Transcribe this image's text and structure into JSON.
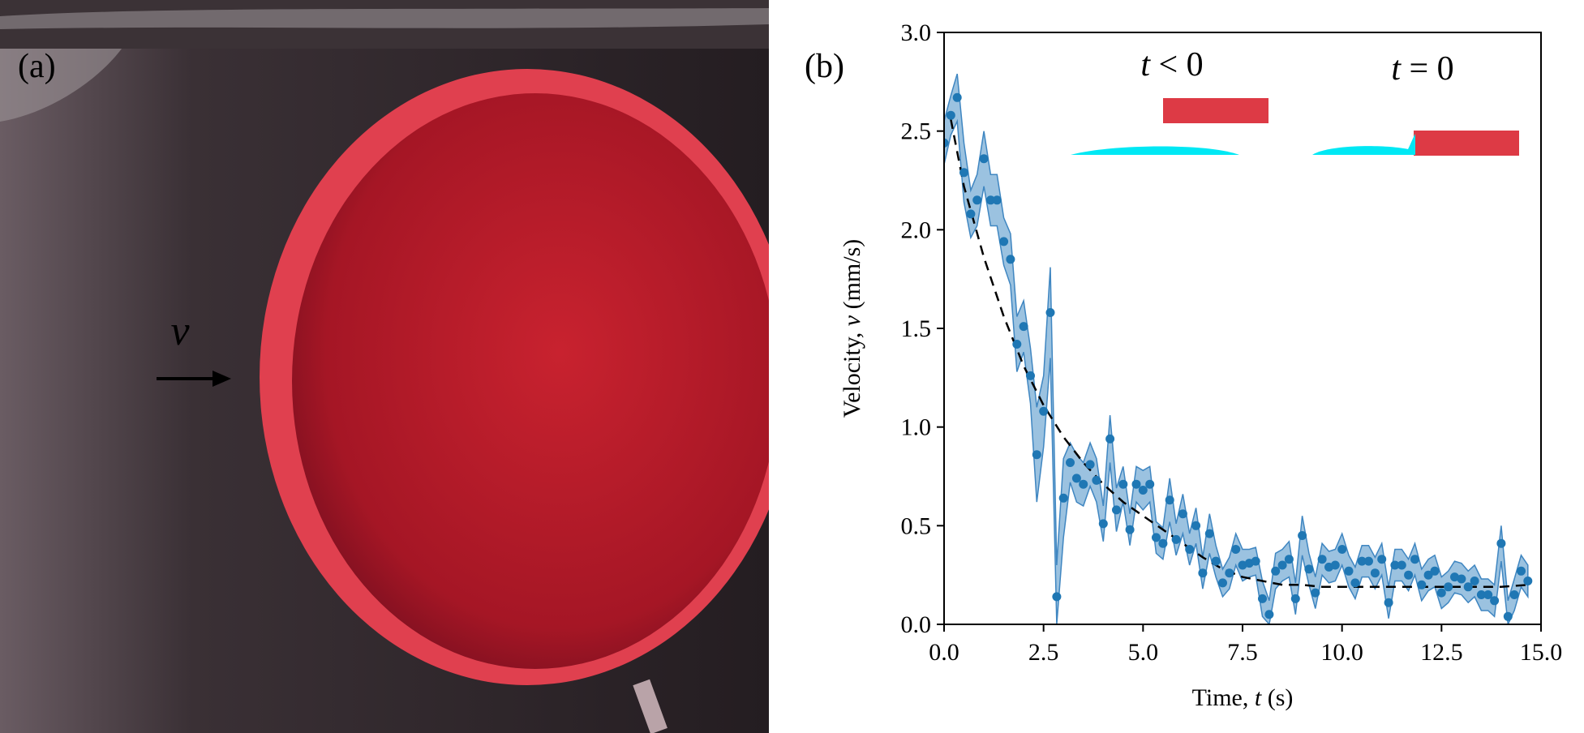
{
  "panel_a": {
    "label": "(a)",
    "velocity_symbol": "v",
    "colors": {
      "background": "#2a2226",
      "droplet": "#c01f2e",
      "droplet_rim": "#e0404f",
      "arrow": "#000000"
    }
  },
  "chart_data": {
    "type": "scatter",
    "panel_label": "(b)",
    "xlabel_text": "Time, ",
    "xlabel_var": "t",
    "xlabel_unit": " (s)",
    "ylabel_text": "Velocity, ",
    "ylabel_var": "v",
    "ylabel_unit": " (mm/s)",
    "xlim": [
      0,
      15
    ],
    "ylim": [
      0,
      3
    ],
    "xticks": [
      0,
      2.5,
      5,
      7.5,
      10,
      12.5,
      15
    ],
    "xtick_labels": [
      "0.0",
      "2.5",
      "5.0",
      "7.5",
      "10.0",
      "12.5",
      "15.0"
    ],
    "yticks": [
      0,
      0.5,
      1,
      1.5,
      2,
      2.5,
      3
    ],
    "ytick_labels": [
      "0.0",
      "0.5",
      "1.0",
      "1.5",
      "2.0",
      "2.5",
      "3.0"
    ],
    "grid": false,
    "colors": {
      "points": "#1f77b4",
      "band": "#7aaed6",
      "band_edge": "#3f86c1",
      "fit": "#000000"
    },
    "series": [
      {
        "kind": "points",
        "x": [
          0.0,
          0.17,
          0.33,
          0.5,
          0.67,
          0.83,
          1.0,
          1.17,
          1.33,
          1.5,
          1.67,
          1.83,
          2.0,
          2.17,
          2.33,
          2.5,
          2.67,
          2.83,
          3.0,
          3.17,
          3.33,
          3.5,
          3.67,
          3.83,
          4.0,
          4.17,
          4.33,
          4.5,
          4.67,
          4.83,
          5.0,
          5.17,
          5.33,
          5.5,
          5.67,
          5.83,
          6.0,
          6.17,
          6.33,
          6.5,
          6.67,
          6.83,
          7.0,
          7.17,
          7.33,
          7.5,
          7.67,
          7.83,
          8.0,
          8.17,
          8.33,
          8.5,
          8.67,
          8.83,
          9.0,
          9.17,
          9.33,
          9.5,
          9.67,
          9.83,
          10.0,
          10.17,
          10.33,
          10.5,
          10.67,
          10.83,
          11.0,
          11.17,
          11.33,
          11.5,
          11.67,
          11.83,
          12.0,
          12.17,
          12.33,
          12.5,
          12.67,
          12.83,
          13.0,
          13.17,
          13.33,
          13.5,
          13.67,
          13.83,
          14.0,
          14.17,
          14.33,
          14.5,
          14.67
        ],
        "y": [
          2.44,
          2.58,
          2.67,
          2.29,
          2.08,
          2.15,
          2.36,
          2.15,
          2.15,
          1.94,
          1.85,
          1.42,
          1.51,
          1.26,
          0.86,
          1.08,
          1.58,
          0.14,
          0.64,
          0.82,
          0.74,
          0.71,
          0.81,
          0.73,
          0.51,
          0.94,
          0.58,
          0.71,
          0.48,
          0.71,
          0.68,
          0.71,
          0.44,
          0.41,
          0.63,
          0.43,
          0.56,
          0.38,
          0.5,
          0.26,
          0.46,
          0.32,
          0.21,
          0.26,
          0.38,
          0.3,
          0.31,
          0.32,
          0.13,
          0.05,
          0.27,
          0.3,
          0.33,
          0.13,
          0.45,
          0.28,
          0.16,
          0.33,
          0.29,
          0.3,
          0.38,
          0.27,
          0.21,
          0.32,
          0.32,
          0.26,
          0.33,
          0.11,
          0.3,
          0.3,
          0.25,
          0.33,
          0.2,
          0.25,
          0.27,
          0.16,
          0.19,
          0.24,
          0.23,
          0.19,
          0.22,
          0.15,
          0.15,
          0.12,
          0.41,
          0.04,
          0.15,
          0.27,
          0.22
        ]
      },
      {
        "kind": "band",
        "x": [
          0.0,
          0.17,
          0.33,
          0.5,
          0.67,
          0.83,
          1.0,
          1.17,
          1.33,
          1.5,
          1.67,
          1.83,
          2.0,
          2.17,
          2.33,
          2.5,
          2.67,
          2.83,
          3.0,
          3.17,
          3.33,
          3.5,
          3.67,
          3.83,
          4.0,
          4.17,
          4.33,
          4.5,
          4.67,
          4.83,
          5.0,
          5.17,
          5.33,
          5.5,
          5.67,
          5.83,
          6.0,
          6.17,
          6.33,
          6.5,
          6.67,
          6.83,
          7.0,
          7.17,
          7.33,
          7.5,
          7.67,
          7.83,
          8.0,
          8.17,
          8.33,
          8.5,
          8.67,
          8.83,
          9.0,
          9.17,
          9.33,
          9.5,
          9.67,
          9.83,
          10.0,
          10.17,
          10.33,
          10.5,
          10.67,
          10.83,
          11.0,
          11.17,
          11.33,
          11.5,
          11.67,
          11.83,
          12.0,
          12.17,
          12.33,
          12.5,
          12.67,
          12.83,
          13.0,
          13.17,
          13.33,
          13.5,
          13.67,
          13.83,
          14.0,
          14.17,
          14.33,
          14.5,
          14.67
        ],
        "y_low": [
          2.33,
          2.48,
          2.55,
          2.14,
          1.96,
          2.02,
          2.22,
          2.02,
          2.02,
          1.82,
          1.72,
          1.28,
          1.38,
          1.12,
          0.62,
          0.9,
          1.35,
          0.0,
          0.44,
          0.72,
          0.62,
          0.6,
          0.7,
          0.62,
          0.42,
          0.82,
          0.47,
          0.62,
          0.4,
          0.62,
          0.58,
          0.62,
          0.36,
          0.33,
          0.52,
          0.35,
          0.46,
          0.3,
          0.41,
          0.18,
          0.36,
          0.24,
          0.14,
          0.18,
          0.3,
          0.22,
          0.24,
          0.25,
          0.04,
          0.0,
          0.18,
          0.22,
          0.24,
          0.05,
          0.35,
          0.2,
          0.08,
          0.25,
          0.21,
          0.22,
          0.3,
          0.19,
          0.13,
          0.24,
          0.24,
          0.18,
          0.25,
          0.03,
          0.22,
          0.22,
          0.17,
          0.25,
          0.12,
          0.17,
          0.19,
          0.08,
          0.11,
          0.16,
          0.15,
          0.11,
          0.14,
          0.07,
          0.07,
          0.04,
          0.32,
          0.0,
          0.07,
          0.19,
          0.14
        ],
        "y_high": [
          2.55,
          2.68,
          2.79,
          2.44,
          2.2,
          2.28,
          2.5,
          2.28,
          2.28,
          2.06,
          1.98,
          1.56,
          1.64,
          1.4,
          1.1,
          1.26,
          1.81,
          0.3,
          0.84,
          0.92,
          0.86,
          0.82,
          0.92,
          0.84,
          0.6,
          1.06,
          0.69,
          0.8,
          0.56,
          0.8,
          0.78,
          0.8,
          0.52,
          0.49,
          0.74,
          0.51,
          0.66,
          0.46,
          0.59,
          0.34,
          0.56,
          0.4,
          0.28,
          0.34,
          0.46,
          0.38,
          0.38,
          0.39,
          0.22,
          0.12,
          0.36,
          0.38,
          0.42,
          0.21,
          0.55,
          0.36,
          0.24,
          0.41,
          0.37,
          0.38,
          0.46,
          0.35,
          0.29,
          0.4,
          0.4,
          0.34,
          0.41,
          0.19,
          0.38,
          0.38,
          0.33,
          0.41,
          0.28,
          0.33,
          0.35,
          0.24,
          0.27,
          0.32,
          0.31,
          0.27,
          0.3,
          0.23,
          0.23,
          0.2,
          0.5,
          0.12,
          0.23,
          0.35,
          0.3
        ]
      },
      {
        "kind": "fit",
        "x": [
          0.17,
          0.5,
          1.0,
          1.5,
          2.0,
          2.5,
          3.0,
          3.5,
          4.0,
          4.5,
          5.0,
          5.5,
          6.0,
          6.5,
          7.0,
          7.5,
          8.0,
          8.5,
          9.0,
          9.5,
          10.0,
          11.0,
          12.0,
          13.0,
          14.0,
          14.67
        ],
        "y": [
          2.56,
          2.22,
          1.86,
          1.56,
          1.31,
          1.11,
          0.95,
          0.82,
          0.71,
          0.62,
          0.55,
          0.48,
          0.41,
          0.34,
          0.28,
          0.24,
          0.22,
          0.2,
          0.2,
          0.19,
          0.19,
          0.19,
          0.19,
          0.19,
          0.19,
          0.2
        ]
      }
    ],
    "annotations": {
      "left": {
        "symbol": "t",
        "relation": " < 0"
      },
      "right": {
        "symbol": "t",
        "relation": " = 0"
      },
      "colors": {
        "block": "#dd3a45",
        "film": "#00e8f4"
      }
    }
  }
}
